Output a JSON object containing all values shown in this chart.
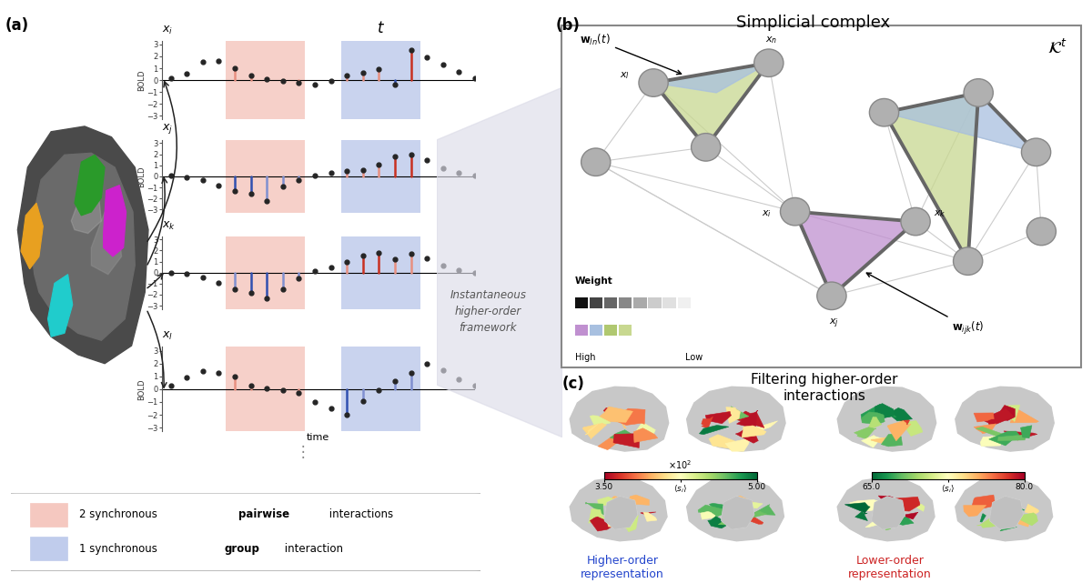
{
  "panel_a_label": "(a)",
  "panel_b_label": "(b)",
  "panel_c_label": "(c)",
  "series_subscripts": [
    "i",
    "j",
    "k",
    "l"
  ],
  "bold_label": "BOLD",
  "time_label": "time",
  "ylim": [
    -3.3,
    3.3
  ],
  "yticks": [
    -3,
    -2,
    -1,
    0,
    1,
    2,
    3
  ],
  "pink_region": [
    0.18,
    0.44
  ],
  "blue_region": [
    0.56,
    0.82
  ],
  "pink_color": "#f5c8c0",
  "blue_color": "#c0ccec",
  "stem_red_dark": "#c83020",
  "stem_red_light": "#e89080",
  "stem_blue_dark": "#3050b0",
  "stem_blue_light": "#8090d0",
  "dot_color": "#252525",
  "simplicial_title": "Simplicial complex",
  "filtering_title": "Filtering higher-order\ninteractions",
  "higher_order_label": "Higher-order\nrepresentation",
  "lower_order_label": "Lower-order\nrepresentation",
  "instantaneous_text": "Instantaneous\nhigher-order\nframework",
  "background_color": "#ffffff",
  "xi_vals": [
    0.15,
    0.55,
    1.5,
    1.6,
    1.0,
    0.4,
    0.05,
    -0.1,
    -0.2,
    -0.4,
    -0.1,
    0.4,
    0.6,
    0.9,
    -0.35,
    2.5,
    1.9,
    1.3,
    0.7,
    0.2
  ],
  "xj_vals": [
    0.05,
    -0.05,
    -0.3,
    -0.8,
    -1.3,
    -1.6,
    -2.2,
    -0.9,
    -0.3,
    0.1,
    0.3,
    0.5,
    0.6,
    1.1,
    1.8,
    2.0,
    1.5,
    0.7,
    0.3,
    0.05
  ],
  "xk_vals": [
    0.0,
    -0.1,
    -0.4,
    -0.9,
    -1.5,
    -1.8,
    -2.3,
    -1.5,
    -0.5,
    0.1,
    0.5,
    1.0,
    1.5,
    1.8,
    1.2,
    1.7,
    1.3,
    0.6,
    0.2,
    0.0
  ],
  "xl_vals": [
    0.3,
    0.9,
    1.4,
    1.3,
    1.0,
    0.3,
    0.05,
    -0.1,
    -0.3,
    -1.0,
    -1.5,
    -2.0,
    -0.9,
    -0.1,
    0.6,
    1.3,
    2.0,
    1.5,
    0.8,
    0.25
  ]
}
